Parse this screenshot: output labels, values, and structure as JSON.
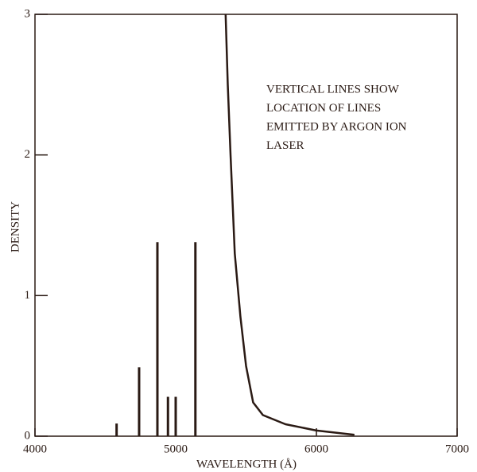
{
  "chart_data": {
    "type": "line",
    "xlabel": "WAVELENGTH (Å)",
    "ylabel": "DENSITY",
    "annotation": [
      "VERTICAL LINES SHOW",
      "LOCATION OF LINES",
      "EMITTED BY ARGON ION",
      "LASER"
    ],
    "color": "#2a1a14",
    "curve": {
      "x": [
        5355,
        5370,
        5390,
        5420,
        5460,
        5500,
        5550,
        5620,
        5780,
        6000,
        6270
      ],
      "values": [
        3.0,
        2.5,
        2.0,
        1.3,
        0.85,
        0.5,
        0.24,
        0.15,
        0.085,
        0.04,
        0.01
      ]
    },
    "emission_lines": {
      "x": [
        4580,
        4740,
        4870,
        4945,
        5000,
        5140
      ],
      "values": [
        0.09,
        0.49,
        1.38,
        0.28,
        0.28,
        1.38
      ]
    },
    "xlim": [
      4000,
      7000
    ],
    "xticks": [
      4000,
      5000,
      6000,
      7000
    ],
    "ylim": [
      0,
      3
    ],
    "yticks": [
      0,
      1,
      2,
      3
    ]
  }
}
